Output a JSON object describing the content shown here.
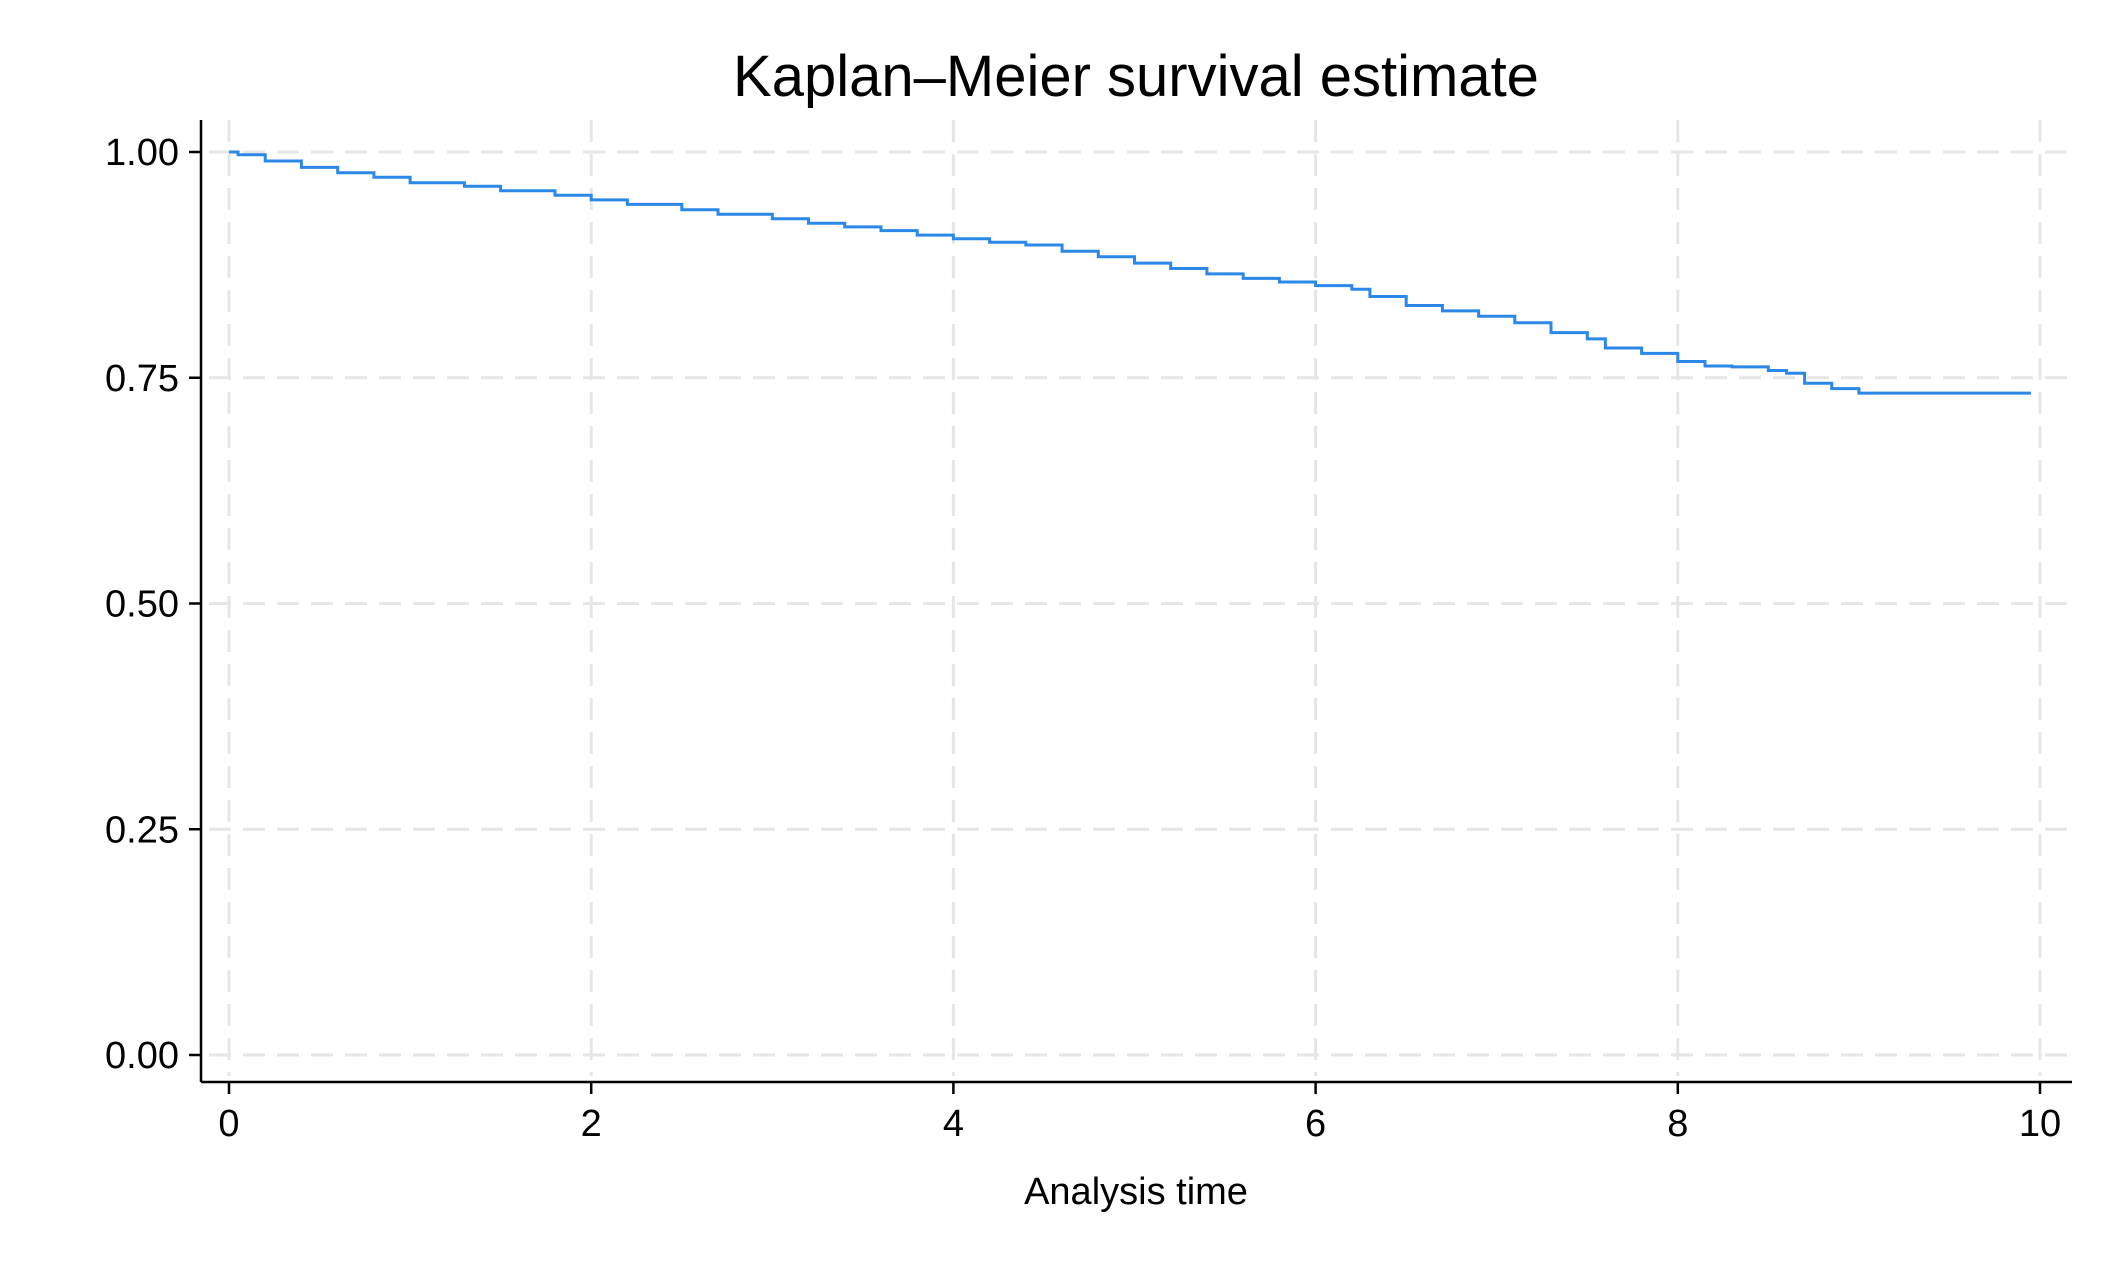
{
  "chart_data": {
    "type": "line",
    "title": "Kaplan–Meier survival estimate",
    "xlabel": "Analysis time",
    "ylabel": "",
    "xlim": [
      0,
      10
    ],
    "ylim": [
      0,
      1
    ],
    "x_ticks": [
      0,
      2,
      4,
      6,
      8,
      10
    ],
    "x_tick_labels": [
      "0",
      "2",
      "4",
      "6",
      "8",
      "10"
    ],
    "y_ticks": [
      0,
      0.25,
      0.5,
      0.75,
      1
    ],
    "y_tick_labels": [
      "0.00",
      "0.25",
      "0.50",
      "0.75",
      "1.00"
    ],
    "grid": true,
    "legend": "none",
    "line_style": "step",
    "colors": {
      "series": "#2b88e8",
      "grid": "#e6e6e6",
      "axis": "#000000"
    },
    "series": [
      {
        "x": [
          0,
          0.05,
          0.2,
          0.4,
          0.6,
          0.8,
          1.0,
          1.3,
          1.5,
          1.8,
          2.0,
          2.2,
          2.5,
          2.7,
          3.0,
          3.2,
          3.4,
          3.6,
          3.8,
          4.0,
          4.2,
          4.4,
          4.6,
          4.8,
          5.0,
          5.2,
          5.4,
          5.6,
          5.8,
          6.0,
          6.2,
          6.3,
          6.5,
          6.7,
          6.9,
          7.1,
          7.3,
          7.5,
          7.6,
          7.8,
          8.0,
          8.15,
          8.3,
          8.5,
          8.6,
          8.7,
          8.85,
          9.0,
          9.5,
          9.95
        ],
        "y": [
          1.0,
          0.997,
          0.99,
          0.983,
          0.977,
          0.972,
          0.966,
          0.962,
          0.957,
          0.952,
          0.947,
          0.942,
          0.936,
          0.931,
          0.926,
          0.921,
          0.917,
          0.913,
          0.908,
          0.904,
          0.9,
          0.897,
          0.89,
          0.884,
          0.877,
          0.871,
          0.865,
          0.86,
          0.856,
          0.852,
          0.848,
          0.84,
          0.83,
          0.824,
          0.818,
          0.811,
          0.8,
          0.793,
          0.783,
          0.777,
          0.768,
          0.763,
          0.762,
          0.758,
          0.755,
          0.744,
          0.738,
          0.733,
          0.733,
          0.733
        ]
      }
    ]
  }
}
